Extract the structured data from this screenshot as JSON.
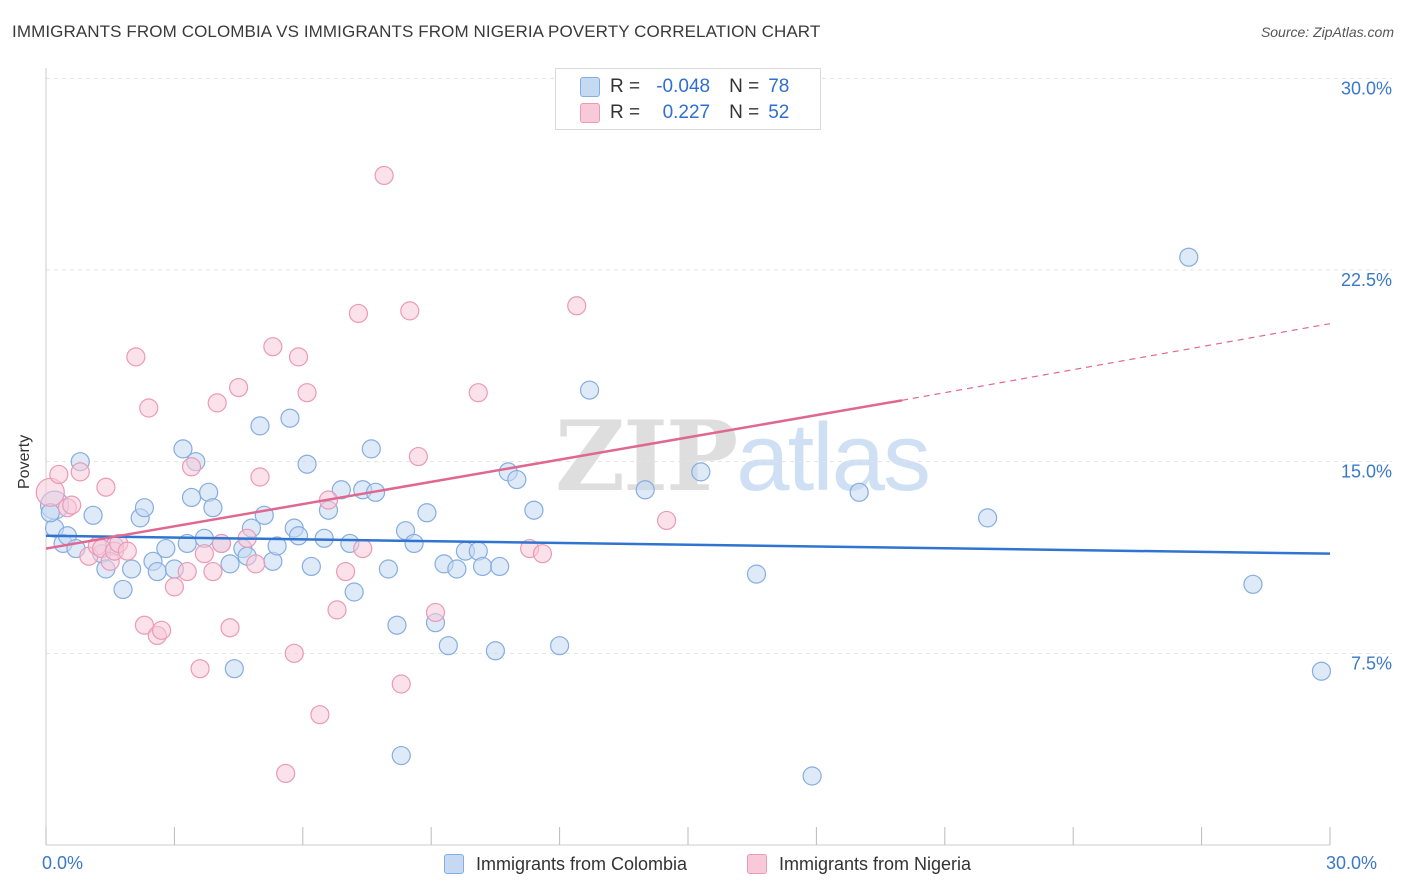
{
  "title": "IMMIGRANTS FROM COLOMBIA VS IMMIGRANTS FROM NIGERIA POVERTY CORRELATION CHART",
  "source": "Source: ZipAtlas.com",
  "watermark": {
    "part1": "ZIP",
    "part2": "atlas"
  },
  "colors": {
    "colombia_fill": "#c5d9f3",
    "colombia_stroke": "#86ade0",
    "colombia_line": "#2f74d0",
    "nigeria_fill": "#f8c9d8",
    "nigeria_stroke": "#eb9ab6",
    "nigeria_line": "#e06890",
    "grid": "#e3e3e3",
    "tick_text": "#3a78c9"
  },
  "legend": {
    "rows": [
      {
        "r_label": "R =",
        "r_value": "-0.048",
        "n_label": "N =",
        "n_value": "78",
        "series": "colombia"
      },
      {
        "r_label": "R =",
        "r_value": "0.227",
        "n_label": "N =",
        "n_value": "52",
        "series": "nigeria"
      }
    ]
  },
  "bottom_legend": {
    "colombia": "Immigrants from Colombia",
    "nigeria": "Immigrants from Nigeria"
  },
  "chart_data": {
    "type": "scatter",
    "title": "IMMIGRANTS FROM COLOMBIA VS IMMIGRANTS FROM NIGERIA POVERTY CORRELATION CHART",
    "xlabel": "",
    "ylabel": "Poverty",
    "xlim": [
      0,
      30
    ],
    "ylim": [
      0,
      31.5
    ],
    "x_tick_labels": {
      "left": "0.0%",
      "right": "30.0%"
    },
    "y_ticks": [
      {
        "value": 7.5,
        "label": "7.5%"
      },
      {
        "value": 15.0,
        "label": "15.0%"
      },
      {
        "value": 22.5,
        "label": "22.5%"
      },
      {
        "value": 30.0,
        "label": "30.0%"
      }
    ],
    "grid": true,
    "legend_position": "top-center",
    "series": [
      {
        "name": "Immigrants from Colombia",
        "key": "colombia",
        "r": -0.048,
        "n": 78,
        "trend": {
          "x0": 0,
          "y0": 12.1,
          "x1": 30,
          "y1": 11.4
        },
        "points": [
          [
            0.2,
            13.3
          ],
          [
            0.2,
            12.4
          ],
          [
            0.4,
            11.8
          ],
          [
            0.5,
            12.1
          ],
          [
            0.7,
            11.6
          ],
          [
            0.8,
            15.0
          ],
          [
            1.1,
            12.9
          ],
          [
            1.3,
            11.4
          ],
          [
            1.4,
            10.8
          ],
          [
            1.6,
            11.7
          ],
          [
            1.8,
            10.0
          ],
          [
            2.0,
            10.8
          ],
          [
            2.2,
            12.8
          ],
          [
            2.3,
            13.2
          ],
          [
            2.5,
            11.1
          ],
          [
            2.6,
            10.7
          ],
          [
            2.8,
            11.6
          ],
          [
            3.0,
            10.8
          ],
          [
            3.2,
            15.5
          ],
          [
            3.3,
            11.8
          ],
          [
            3.4,
            13.6
          ],
          [
            3.5,
            15.0
          ],
          [
            3.7,
            12.0
          ],
          [
            3.8,
            13.8
          ],
          [
            3.9,
            13.2
          ],
          [
            4.1,
            11.8
          ],
          [
            4.3,
            11.0
          ],
          [
            4.4,
            6.9
          ],
          [
            4.6,
            11.6
          ],
          [
            4.7,
            11.3
          ],
          [
            4.8,
            12.4
          ],
          [
            5.0,
            16.4
          ],
          [
            5.1,
            12.9
          ],
          [
            5.3,
            11.1
          ],
          [
            5.4,
            11.7
          ],
          [
            5.7,
            16.7
          ],
          [
            5.8,
            12.4
          ],
          [
            5.9,
            12.1
          ],
          [
            6.1,
            14.9
          ],
          [
            6.2,
            10.9
          ],
          [
            6.5,
            12.0
          ],
          [
            6.6,
            13.1
          ],
          [
            6.9,
            13.9
          ],
          [
            7.1,
            11.8
          ],
          [
            7.2,
            9.9
          ],
          [
            7.4,
            13.9
          ],
          [
            7.6,
            15.5
          ],
          [
            7.7,
            13.8
          ],
          [
            8.0,
            10.8
          ],
          [
            8.2,
            8.6
          ],
          [
            8.3,
            3.5
          ],
          [
            8.4,
            12.3
          ],
          [
            8.6,
            11.8
          ],
          [
            8.9,
            13.0
          ],
          [
            9.1,
            8.7
          ],
          [
            9.3,
            11.0
          ],
          [
            9.4,
            7.8
          ],
          [
            9.6,
            10.8
          ],
          [
            9.8,
            11.5
          ],
          [
            10.1,
            11.5
          ],
          [
            10.2,
            10.9
          ],
          [
            10.5,
            7.6
          ],
          [
            10.6,
            10.9
          ],
          [
            10.8,
            14.6
          ],
          [
            11.0,
            14.3
          ],
          [
            11.4,
            13.1
          ],
          [
            12.0,
            7.8
          ],
          [
            12.7,
            17.8
          ],
          [
            14.0,
            13.9
          ],
          [
            15.3,
            14.6
          ],
          [
            16.6,
            10.6
          ],
          [
            17.9,
            2.7
          ],
          [
            19.0,
            13.8
          ],
          [
            22.0,
            12.8
          ],
          [
            26.7,
            23.0
          ],
          [
            28.2,
            10.2
          ],
          [
            29.8,
            6.8
          ],
          [
            0.1,
            13.0
          ]
        ]
      },
      {
        "name": "Immigrants from Nigeria",
        "key": "nigeria",
        "r": 0.227,
        "n": 52,
        "trend": {
          "x0": 0,
          "y0": 11.6,
          "x1": 20,
          "y1": 17.4,
          "dashed_x1": 30,
          "dashed_y1": 20.4
        },
        "points": [
          [
            0.1,
            13.8
          ],
          [
            0.3,
            14.5
          ],
          [
            0.5,
            13.2
          ],
          [
            0.6,
            13.3
          ],
          [
            0.8,
            14.6
          ],
          [
            1.0,
            11.3
          ],
          [
            1.2,
            11.7
          ],
          [
            1.3,
            11.6
          ],
          [
            1.4,
            14.0
          ],
          [
            1.5,
            11.1
          ],
          [
            1.6,
            11.5
          ],
          [
            1.7,
            11.8
          ],
          [
            1.9,
            11.5
          ],
          [
            2.1,
            19.1
          ],
          [
            2.3,
            8.6
          ],
          [
            2.4,
            17.1
          ],
          [
            2.6,
            8.2
          ],
          [
            2.7,
            8.4
          ],
          [
            3.0,
            10.1
          ],
          [
            3.3,
            10.7
          ],
          [
            3.4,
            14.8
          ],
          [
            3.6,
            6.9
          ],
          [
            3.7,
            11.4
          ],
          [
            3.9,
            10.7
          ],
          [
            4.0,
            17.3
          ],
          [
            4.1,
            11.8
          ],
          [
            4.3,
            8.5
          ],
          [
            4.5,
            17.9
          ],
          [
            4.7,
            12.0
          ],
          [
            4.9,
            11.0
          ],
          [
            5.0,
            14.4
          ],
          [
            5.3,
            19.5
          ],
          [
            5.6,
            2.8
          ],
          [
            5.8,
            7.5
          ],
          [
            5.9,
            19.1
          ],
          [
            6.1,
            17.7
          ],
          [
            6.4,
            5.1
          ],
          [
            6.6,
            13.5
          ],
          [
            6.8,
            9.2
          ],
          [
            7.0,
            10.7
          ],
          [
            7.3,
            20.8
          ],
          [
            7.4,
            11.6
          ],
          [
            7.9,
            26.2
          ],
          [
            8.3,
            6.3
          ],
          [
            8.5,
            20.9
          ],
          [
            8.7,
            15.2
          ],
          [
            9.1,
            9.1
          ],
          [
            10.1,
            17.7
          ],
          [
            11.3,
            11.6
          ],
          [
            11.6,
            11.4
          ],
          [
            12.4,
            21.1
          ],
          [
            14.5,
            12.7
          ]
        ]
      }
    ]
  }
}
